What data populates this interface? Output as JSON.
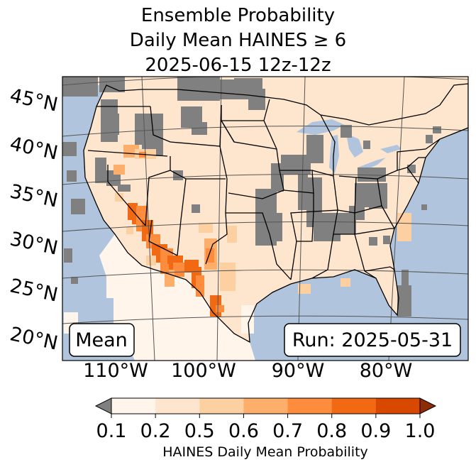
{
  "title": {
    "line1": "Ensemble Probability",
    "line2": "Daily Mean HAINES ≥ 6",
    "line3": "2025-06-15 12z-12z"
  },
  "map": {
    "region": "Contiguous United States",
    "colors": {
      "ocean": "#b0c4de",
      "no_data_gray": "#808080",
      "boundaries": "#000000",
      "graticule": "#555555"
    },
    "latitude_labels": [
      "45°N",
      "40°N",
      "35°N",
      "30°N",
      "25°N",
      "20°N"
    ],
    "longitude_labels": [
      "110°W",
      "100°W",
      "90°W",
      "80°W"
    ]
  },
  "annotations": {
    "left_box": "Mean",
    "right_box": "Run: 2025-05-31"
  },
  "colorbar": {
    "ticks": [
      "0.1",
      "0.2",
      "0.5",
      "0.6",
      "0.7",
      "0.8",
      "0.9",
      "1.0"
    ],
    "colors": [
      "#fff5eb",
      "#fee6ce",
      "#fdd0a2",
      "#fdae6b",
      "#fd8d3c",
      "#f16913",
      "#d94801"
    ],
    "under_color": "#808080",
    "over_color": "#8c2d04",
    "label": "HAINES Daily Mean Probability"
  }
}
